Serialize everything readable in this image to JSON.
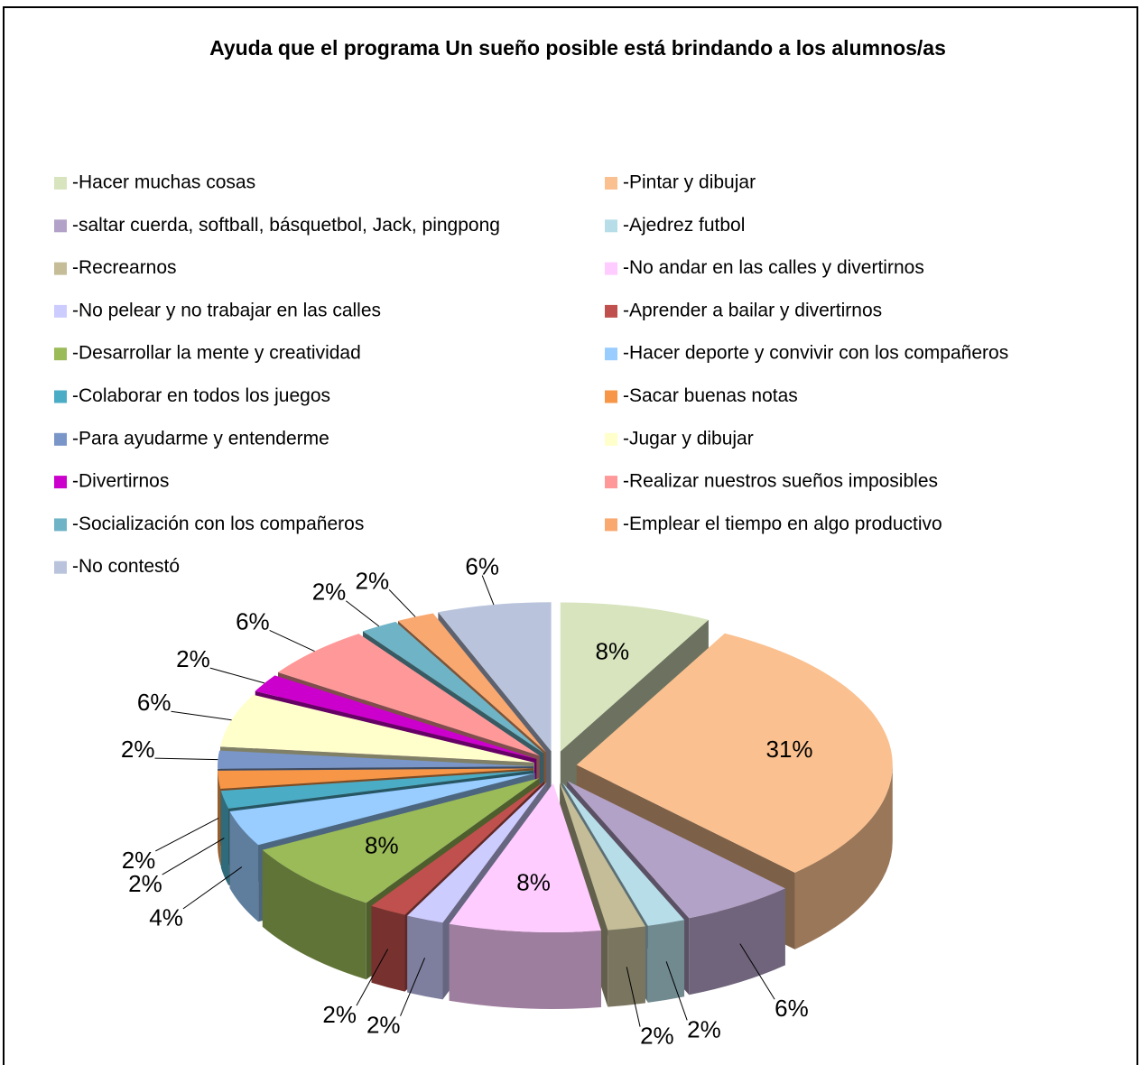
{
  "chart_data": {
    "type": "pie3d",
    "title": "Ayuda que el programa Un sueño posible está brindando  a los alumnos/as",
    "categories": [
      "-Hacer muchas cosas",
      "-Pintar y dibujar",
      "-saltar cuerda, softball, básquetbol, Jack, pingpong",
      "-Ajedrez futbol",
      "-Recrearnos",
      "-No andar en las calles y divertirnos",
      "-No pelear y no trabajar en las calles",
      "-Aprender a bailar y divertirnos",
      "-Desarrollar la mente y creatividad",
      "-Hacer deporte y convivir con los compañeros",
      "-Colaborar en todos los juegos",
      "-Sacar buenas notas",
      "-Para ayudarme y entenderme",
      "-Jugar y dibujar",
      "-Divertirnos",
      "-Realizar nuestros sueños imposibles",
      "-Socialización con los compañeros",
      "-Emplear el tiempo en algo productivo",
      "-No contestó"
    ],
    "values": [
      8,
      31,
      6,
      2,
      2,
      8,
      2,
      2,
      8,
      4,
      2,
      2,
      2,
      6,
      2,
      6,
      2,
      2,
      6
    ],
    "value_labels": [
      "8%",
      "31%",
      "6%",
      "2%",
      "2%",
      "8%",
      "2%",
      "2%",
      "8%",
      "4%",
      "2%",
      "2%",
      "2%",
      "6%",
      "2%",
      "6%",
      "2%",
      "2%",
      "6%"
    ],
    "colors": [
      "#d7e4bd",
      "#fac090",
      "#b3a2c7",
      "#b7dee8",
      "#c4bd97",
      "#ffccff",
      "#ccccff",
      "#c0504d",
      "#9bbb59",
      "#99ccff",
      "#4bacc6",
      "#f79646",
      "#7a96c8",
      "#ffffcc",
      "#cc00cc",
      "#ff9999",
      "#6fb4c6",
      "#f9a870",
      "#b9c4dc"
    ],
    "legend": "top"
  }
}
